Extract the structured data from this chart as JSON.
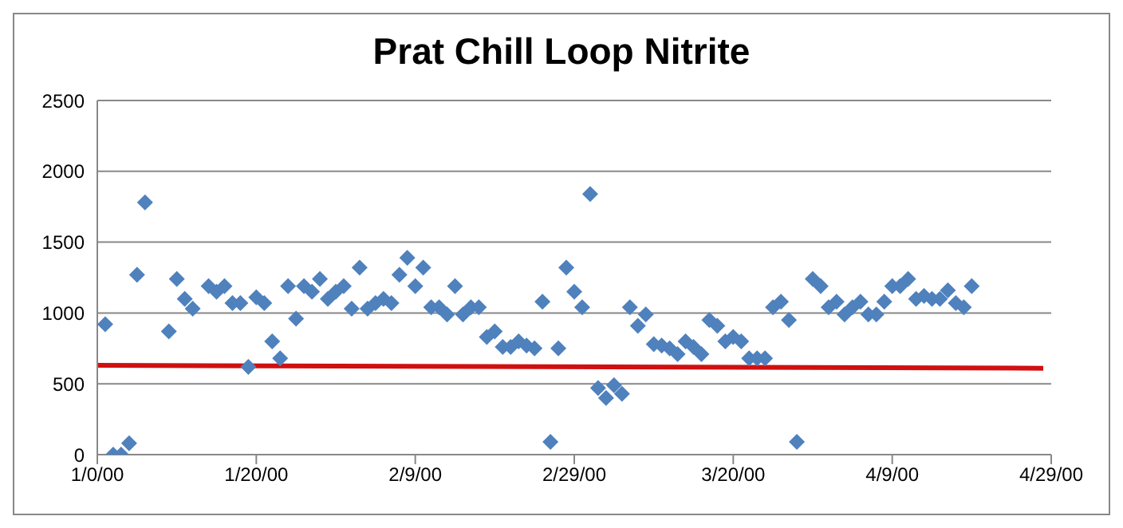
{
  "chart_data": {
    "type": "scatter",
    "title": "Prat Chill Loop Nitrite",
    "grid": "y",
    "legend": false,
    "xlim": [
      "1999-12-31",
      "2000-04-29"
    ],
    "xticks": [
      {
        "value": "1999-12-31",
        "label": "1/0/00"
      },
      {
        "value": "2000-01-20",
        "label": "1/20/00"
      },
      {
        "value": "2000-02-09",
        "label": "2/9/00"
      },
      {
        "value": "2000-02-29",
        "label": "2/29/00"
      },
      {
        "value": "2000-03-20",
        "label": "3/20/00"
      },
      {
        "value": "2000-04-09",
        "label": "4/9/00"
      },
      {
        "value": "2000-04-29",
        "label": "4/29/00"
      }
    ],
    "ylim": [
      0,
      2500
    ],
    "yticks": [
      0,
      500,
      1000,
      1500,
      2000,
      2500
    ],
    "series": [
      {
        "type": "scatter",
        "marker": "diamond",
        "color": "#4f81bd",
        "x": [
          "2000-01-01",
          "2000-01-02",
          "2000-01-03",
          "2000-01-04",
          "2000-01-05",
          "2000-01-06",
          "2000-01-09",
          "2000-01-10",
          "2000-01-11",
          "2000-01-12",
          "2000-01-14",
          "2000-01-15",
          "2000-01-16",
          "2000-01-17",
          "2000-01-18",
          "2000-01-19",
          "2000-01-20",
          "2000-01-21",
          "2000-01-22",
          "2000-01-23",
          "2000-01-24",
          "2000-01-25",
          "2000-01-26",
          "2000-01-27",
          "2000-01-28",
          "2000-01-29",
          "2000-01-30",
          "2000-01-31",
          "2000-02-01",
          "2000-02-02",
          "2000-02-03",
          "2000-02-04",
          "2000-02-05",
          "2000-02-06",
          "2000-02-07",
          "2000-02-08",
          "2000-02-09",
          "2000-02-10",
          "2000-02-11",
          "2000-02-12",
          "2000-02-13",
          "2000-02-14",
          "2000-02-15",
          "2000-02-16",
          "2000-02-17",
          "2000-02-18",
          "2000-02-19",
          "2000-02-20",
          "2000-02-21",
          "2000-02-22",
          "2000-02-23",
          "2000-02-24",
          "2000-02-25",
          "2000-02-26",
          "2000-02-27",
          "2000-02-28",
          "2000-02-29",
          "2000-03-01",
          "2000-03-02",
          "2000-03-03",
          "2000-03-04",
          "2000-03-05",
          "2000-03-06",
          "2000-03-07",
          "2000-03-08",
          "2000-03-09",
          "2000-03-10",
          "2000-03-11",
          "2000-03-12",
          "2000-03-13",
          "2000-03-14",
          "2000-03-15",
          "2000-03-16",
          "2000-03-17",
          "2000-03-18",
          "2000-03-19",
          "2000-03-20",
          "2000-03-21",
          "2000-03-22",
          "2000-03-23",
          "2000-03-24",
          "2000-03-25",
          "2000-03-26",
          "2000-03-27",
          "2000-03-28",
          "2000-03-30",
          "2000-03-31",
          "2000-04-01",
          "2000-04-02",
          "2000-04-03",
          "2000-04-04",
          "2000-04-05",
          "2000-04-06",
          "2000-04-07",
          "2000-04-08",
          "2000-04-09",
          "2000-04-10",
          "2000-04-11",
          "2000-04-12",
          "2000-04-13",
          "2000-04-14",
          "2000-04-15",
          "2000-04-16",
          "2000-04-17",
          "2000-04-18",
          "2000-04-19"
        ],
        "values": [
          920,
          0,
          0,
          80,
          1270,
          1780,
          870,
          1240,
          1100,
          1030,
          1190,
          1150,
          1190,
          1070,
          1070,
          620,
          1110,
          1070,
          800,
          680,
          1190,
          960,
          1190,
          1150,
          1240,
          1100,
          1150,
          1190,
          1030,
          1320,
          1030,
          1070,
          1100,
          1070,
          1270,
          1390,
          1190,
          1320,
          1040,
          1040,
          990,
          1190,
          990,
          1040,
          1040,
          830,
          870,
          760,
          760,
          800,
          770,
          750,
          1080,
          90,
          750,
          1320,
          1150,
          1040,
          1840,
          470,
          400,
          490,
          430,
          1040,
          910,
          990,
          780,
          770,
          750,
          710,
          800,
          760,
          710,
          950,
          910,
          800,
          830,
          800,
          680,
          680,
          680,
          1040,
          1080,
          950,
          90,
          1240,
          1190,
          1040,
          1080,
          990,
          1040,
          1080,
          990,
          990,
          1080,
          1190,
          1190,
          1240,
          1100,
          1120,
          1100,
          1100,
          1160,
          1070,
          1040,
          1190
        ]
      },
      {
        "type": "line",
        "marker": "none",
        "color": "#d01010",
        "x": [
          "1999-12-31",
          "2000-04-28"
        ],
        "values": [
          630,
          610
        ]
      }
    ]
  }
}
